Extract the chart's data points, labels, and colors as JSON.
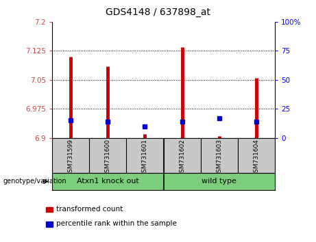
{
  "title": "GDS4148 / 637898_at",
  "samples": [
    "GSM731599",
    "GSM731600",
    "GSM731601",
    "GSM731602",
    "GSM731603",
    "GSM731604"
  ],
  "transformed_count": [
    7.11,
    7.085,
    6.91,
    7.135,
    6.905,
    7.055
  ],
  "percentile_rank": [
    15,
    14,
    10,
    14,
    17,
    14
  ],
  "ylim_left": [
    6.9,
    7.2
  ],
  "ylim_right": [
    0,
    100
  ],
  "yticks_left": [
    6.9,
    6.975,
    7.05,
    7.125,
    7.2
  ],
  "yticks_right": [
    0,
    25,
    50,
    75,
    100
  ],
  "ytick_labels_left": [
    "6.9",
    "6.975",
    "7.05",
    "7.125",
    "7.2"
  ],
  "ytick_labels_right": [
    "0",
    "25",
    "50",
    "75",
    "100%"
  ],
  "bar_color": "#CC0000",
  "dot_color": "#0000CC",
  "bar_base": 6.9,
  "xlabel_area_color": "#c8c8c8",
  "group_label_color": "#7CCD7C",
  "legend_red_label": "transformed count",
  "legend_blue_label": "percentile rank within the sample",
  "genotype_label": "genotype/variation"
}
